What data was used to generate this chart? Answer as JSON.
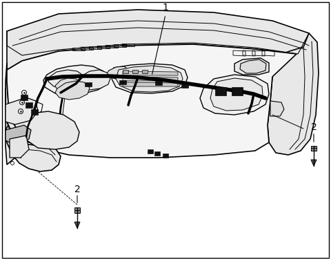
{
  "background_color": "#ffffff",
  "border_color": "#000000",
  "fig_width": 4.8,
  "fig_height": 3.76,
  "dpi": 100,
  "label_1_text": "1",
  "label_2_text": "2",
  "line_color": "#000000",
  "harness_color": "#000000",
  "font_size_label": 10,
  "gray_fill": "#d8d8d8",
  "light_gray": "#e8e8e8",
  "mid_gray": "#c0c0c0"
}
